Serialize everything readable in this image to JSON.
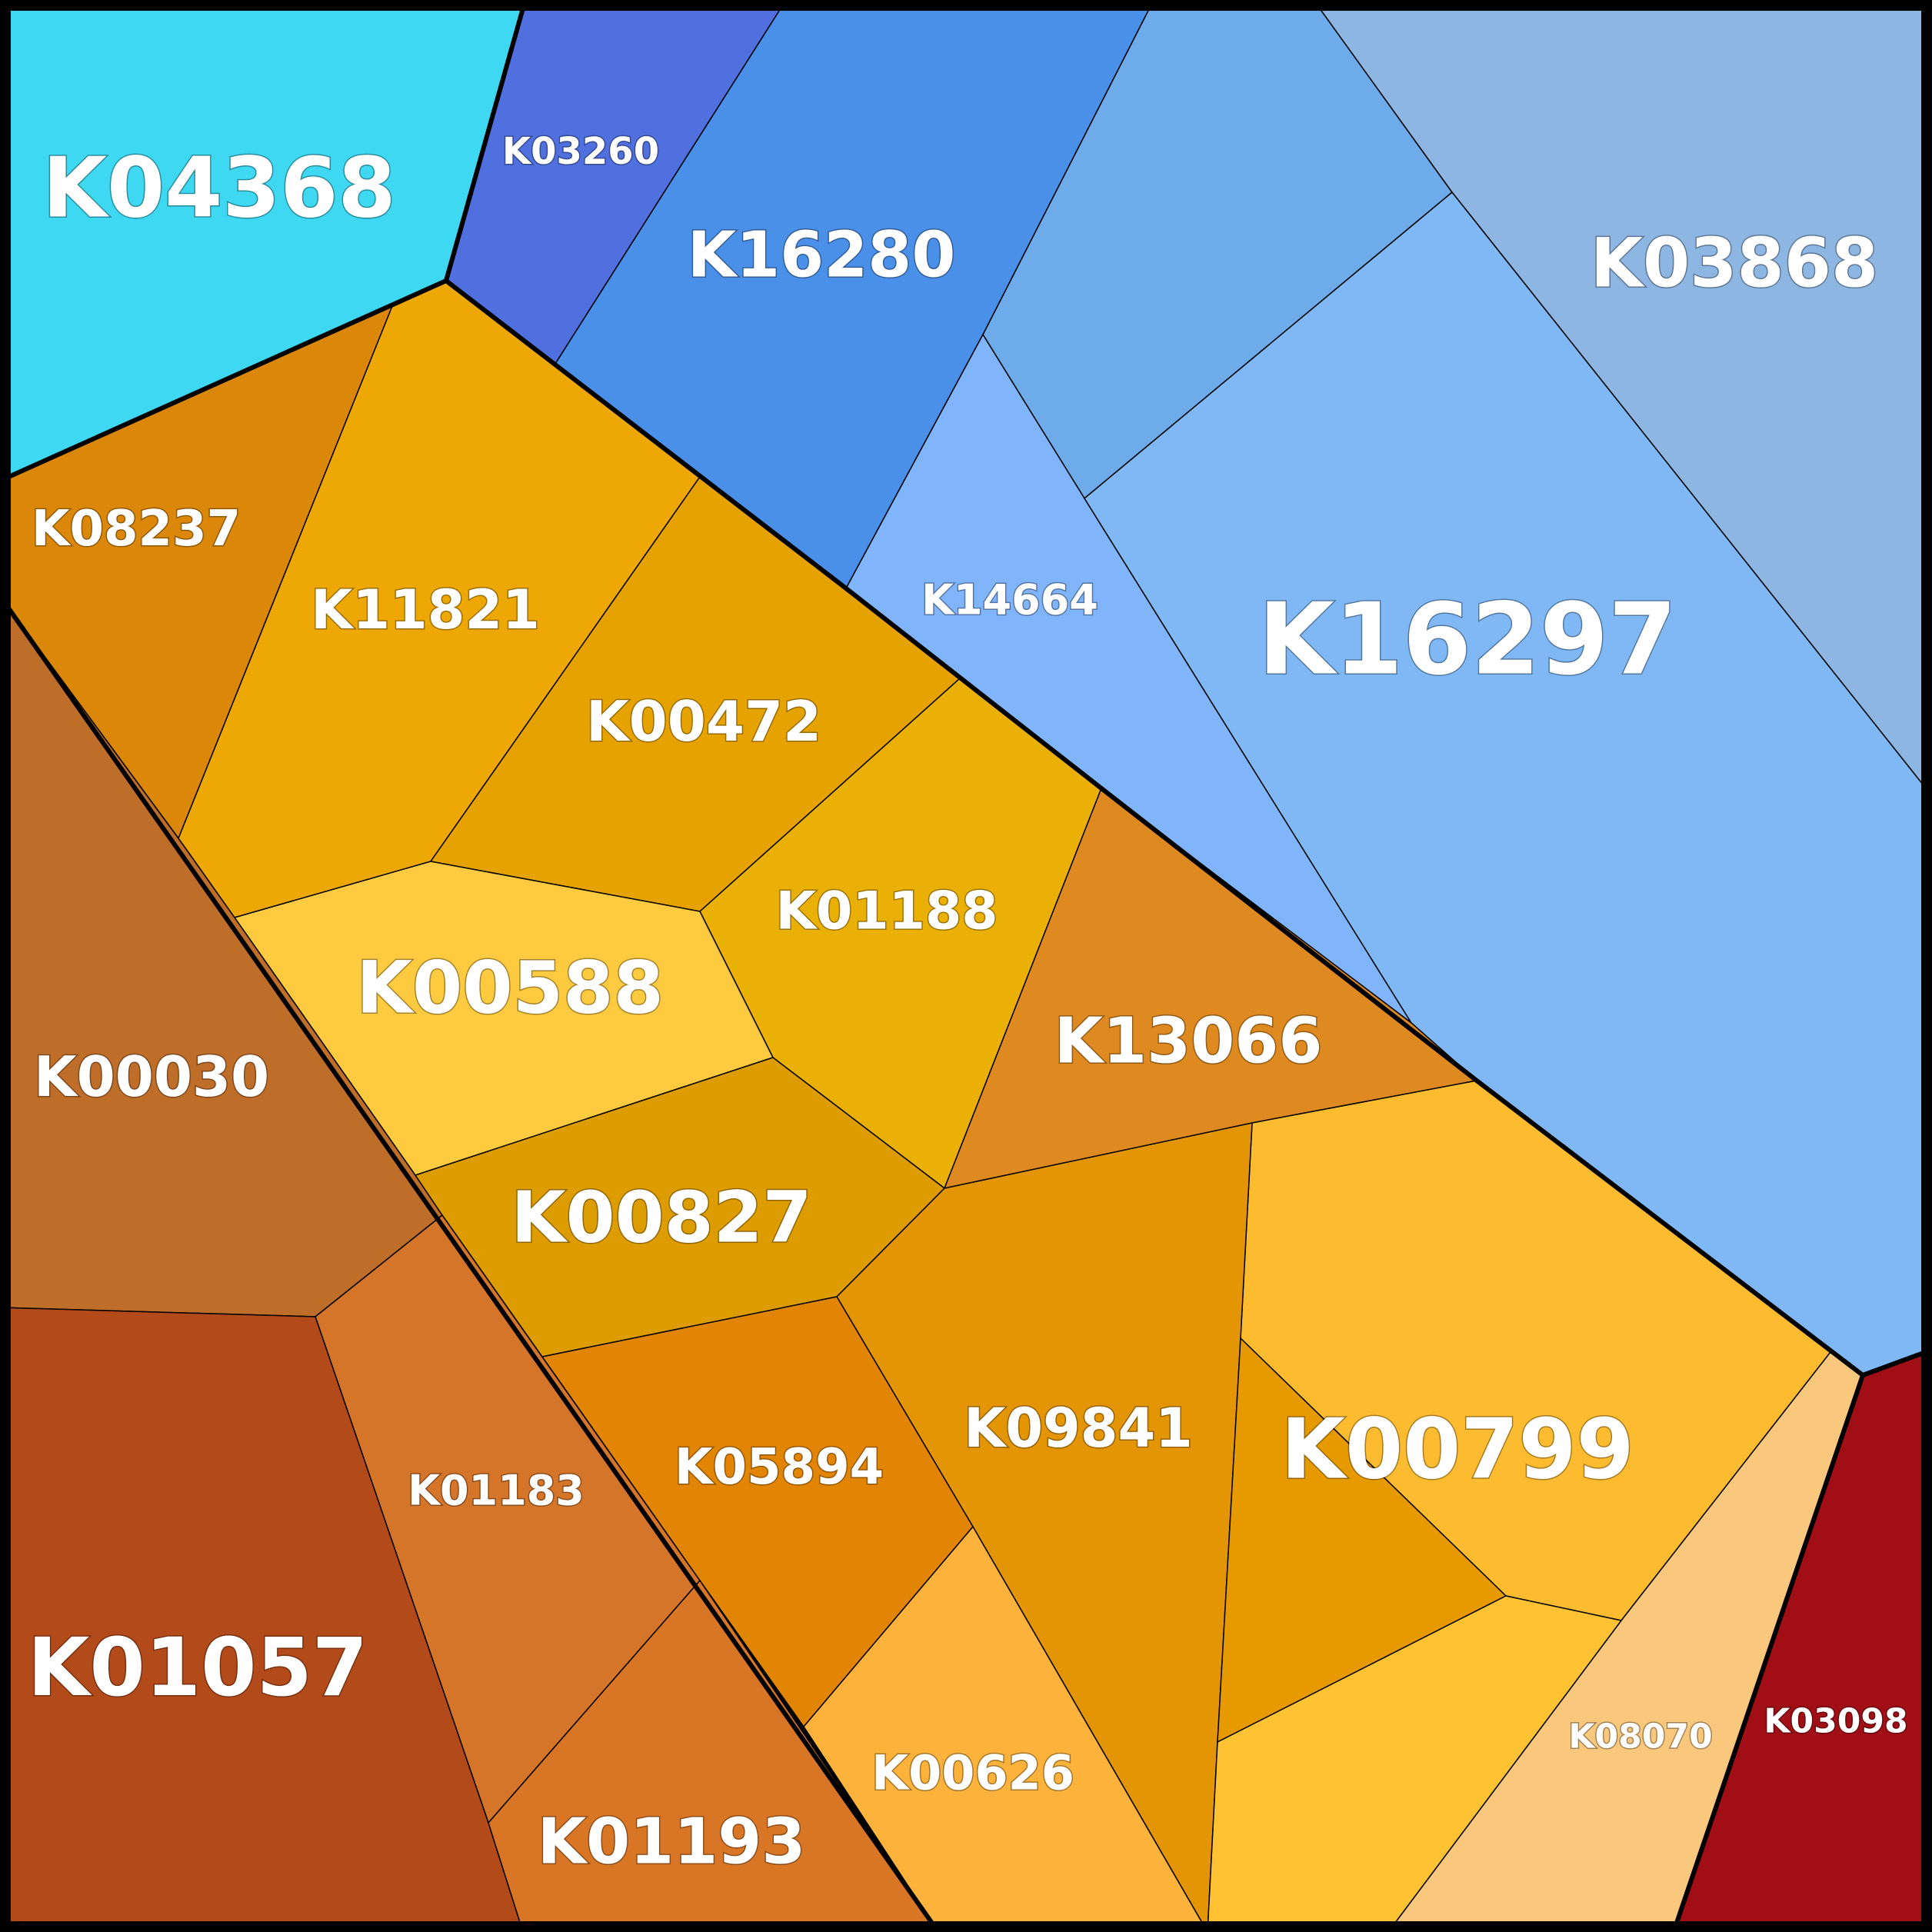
{
  "diagram": {
    "type": "voronoi-treemap",
    "cells": [
      {
        "id": "K04368",
        "color": "#3FD8F2"
      },
      {
        "id": "K03260",
        "color": "#4F70DE"
      },
      {
        "id": "K16280",
        "color": "#4A90E8"
      },
      {
        "id": "K03868",
        "color": "#8EB6E3"
      },
      {
        "id": "K08237",
        "color": "#DB8709"
      },
      {
        "id": "K11821",
        "color": "#EDA805"
      },
      {
        "id": "K00472",
        "color": "#E6A300"
      },
      {
        "id": "K14664",
        "color": "#80B5FC"
      },
      {
        "id": "K16297",
        "color": "#7FB8F5"
      },
      {
        "id": "K01188",
        "color": "#EBB005"
      },
      {
        "id": "K00588",
        "color": "#FDCA40"
      },
      {
        "id": "K13066",
        "color": "#DE8A20"
      },
      {
        "id": "K00030",
        "color": "#BF6E2A"
      },
      {
        "id": "K00827",
        "color": "#DD9C00"
      },
      {
        "id": "K00799",
        "color": "#FDBB30"
      },
      {
        "id": "K09841",
        "color": "#E39505"
      },
      {
        "id": "K01183",
        "color": "#D4752A"
      },
      {
        "id": "K05894",
        "color": "#E28505"
      },
      {
        "id": "K01057",
        "color": "#B34A1A"
      },
      {
        "id": "K00626",
        "color": "#FDB33B"
      },
      {
        "id": "K01193",
        "color": "#D87625"
      },
      {
        "id": "K08070",
        "color": "#F9C87D"
      },
      {
        "id": "K03098",
        "color": "#A10E16"
      }
    ]
  }
}
